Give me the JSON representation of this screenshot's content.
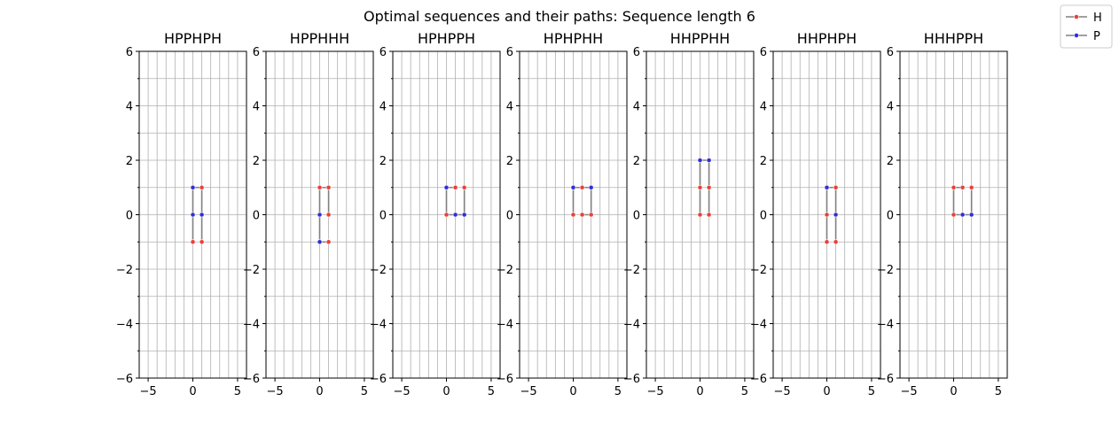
{
  "chart_data": {
    "type": "line",
    "title": "Optimal sequences and their paths: Sequence length 6",
    "xlim": [
      -6,
      6
    ],
    "ylim": [
      -6,
      6
    ],
    "xticks": [
      -5,
      0,
      5
    ],
    "xtick_labels": [
      "−5",
      "0",
      "5"
    ],
    "yticks": [
      -6,
      -4,
      -2,
      0,
      2,
      4,
      6
    ],
    "ytick_labels": [
      "−6",
      "−4",
      "−2",
      "0",
      "2",
      "4",
      "6"
    ],
    "grid": true,
    "legend": {
      "placement": "top-right",
      "entries": [
        {
          "label": "H",
          "color": "#e8413a"
        },
        {
          "label": "P",
          "color": "#2f2fd8"
        }
      ]
    },
    "colors": {
      "H": "#e8413a",
      "P": "#2f2fd8",
      "path": "#808080",
      "grid": "#b0b0b0"
    },
    "panels": [
      {
        "title": "HPPHPH",
        "sequence": "HPPHPH",
        "path": [
          [
            0,
            -1
          ],
          [
            0,
            0
          ],
          [
            0,
            1
          ],
          [
            1,
            1
          ],
          [
            1,
            0
          ],
          [
            1,
            -1
          ]
        ]
      },
      {
        "title": "HPPHHH",
        "sequence": "HPPHHH",
        "path": [
          [
            1,
            -1
          ],
          [
            0,
            -1
          ],
          [
            0,
            0
          ],
          [
            0,
            1
          ],
          [
            1,
            1
          ],
          [
            1,
            0
          ]
        ]
      },
      {
        "title": "HPHPPH",
        "sequence": "HPHPPH",
        "path": [
          [
            1,
            1
          ],
          [
            0,
            1
          ],
          [
            0,
            0
          ],
          [
            1,
            0
          ],
          [
            2,
            0
          ],
          [
            2,
            1
          ]
        ]
      },
      {
        "title": "HPHPHH",
        "sequence": "HPHPHH",
        "path": [
          [
            0,
            0
          ],
          [
            0,
            1
          ],
          [
            1,
            1
          ],
          [
            2,
            1
          ],
          [
            2,
            0
          ],
          [
            1,
            0
          ]
        ]
      },
      {
        "title": "HHPPHH",
        "sequence": "HHPPHH",
        "path": [
          [
            0,
            0
          ],
          [
            0,
            1
          ],
          [
            0,
            2
          ],
          [
            1,
            2
          ],
          [
            1,
            1
          ],
          [
            1,
            0
          ]
        ]
      },
      {
        "title": "HHPHPH",
        "sequence": "HHPHPH",
        "path": [
          [
            0,
            -1
          ],
          [
            0,
            0
          ],
          [
            0,
            1
          ],
          [
            1,
            1
          ],
          [
            1,
            0
          ],
          [
            1,
            -1
          ]
        ]
      },
      {
        "title": "HHHPPH",
        "sequence": "HHHPPH",
        "path": [
          [
            1,
            1
          ],
          [
            0,
            1
          ],
          [
            0,
            0
          ],
          [
            1,
            0
          ],
          [
            2,
            0
          ],
          [
            2,
            1
          ]
        ]
      }
    ]
  }
}
